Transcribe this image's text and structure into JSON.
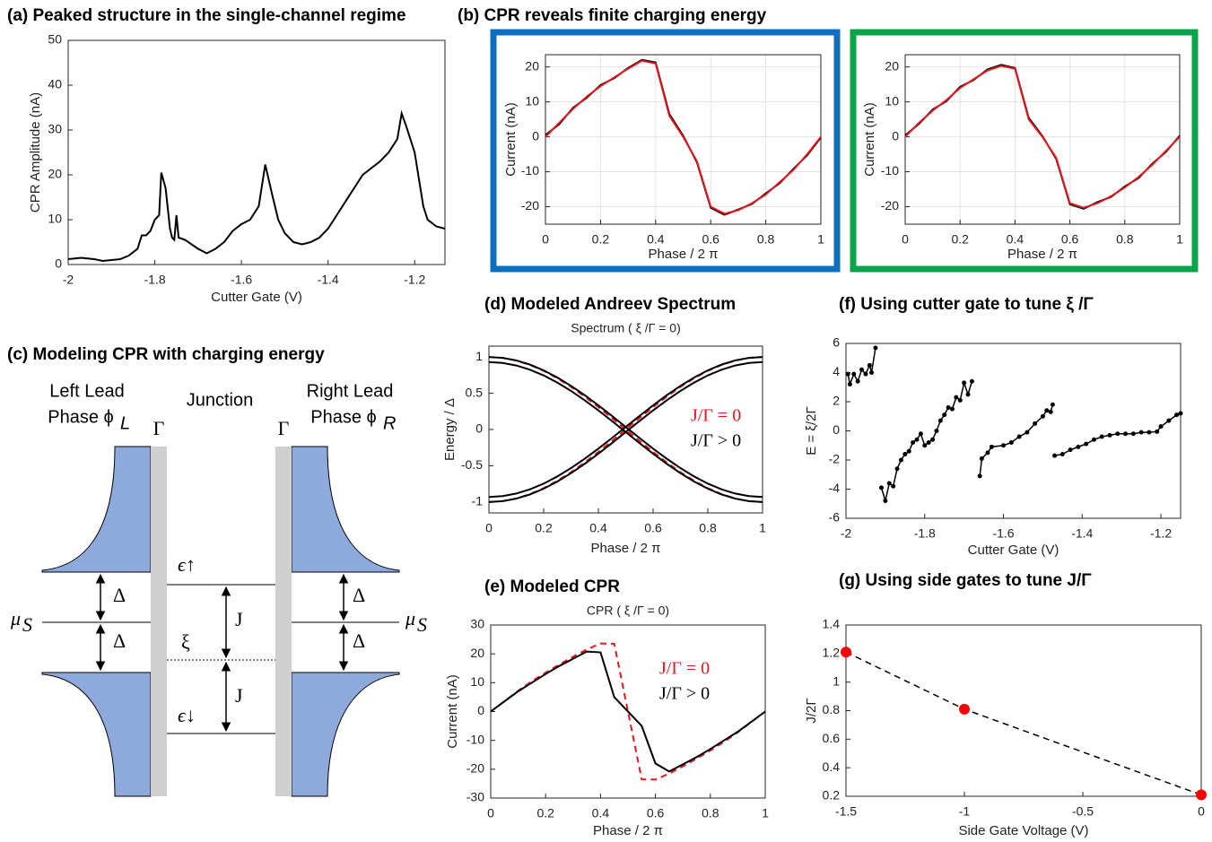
{
  "chart_data": [
    {
      "type": "line",
      "title": "(a) Peaked structure in the single-channel regime",
      "xlabel": "Cutter Gate (V)",
      "ylabel": "CPR Amplitude (nA)",
      "x": [
        -2,
        -1.97,
        -1.94,
        -1.92,
        -1.9,
        -1.88,
        -1.86,
        -1.84,
        -1.83,
        -1.82,
        -1.81,
        -1.8,
        -1.79,
        -1.785,
        -1.775,
        -1.765,
        -1.76,
        -1.755,
        -1.75,
        -1.745,
        -1.73,
        -1.7,
        -1.68,
        -1.66,
        -1.64,
        -1.62,
        -1.6,
        -1.58,
        -1.56,
        -1.545,
        -1.53,
        -1.515,
        -1.5,
        -1.48,
        -1.46,
        -1.44,
        -1.42,
        -1.4,
        -1.38,
        -1.36,
        -1.34,
        -1.32,
        -1.3,
        -1.28,
        -1.26,
        -1.24,
        -1.23,
        -1.22,
        -1.2,
        -1.19,
        -1.18,
        -1.17,
        -1.15,
        -1.13
      ],
      "series": [
        {
          "color": "#000000",
          "values": [
            1.2,
            1.5,
            1.2,
            0.8,
            1,
            1.2,
            2,
            3.5,
            6.5,
            6.5,
            7.5,
            10,
            11,
            20.5,
            17,
            8,
            6,
            5.5,
            11,
            6,
            5.5,
            3.5,
            2.5,
            3.5,
            5,
            7.5,
            9,
            10,
            13,
            22.3,
            16,
            10,
            7,
            5,
            4.5,
            5,
            6,
            8,
            11,
            14,
            17,
            20,
            21.5,
            23,
            25,
            28,
            33.7,
            31,
            25,
            19,
            13,
            10,
            8.5,
            8
          ]
        }
      ],
      "xlim": [
        -2,
        -1.13
      ],
      "xticks": [
        -2,
        -1.8,
        -1.6,
        -1.4,
        -1.2
      ],
      "ylim": [
        0,
        50
      ],
      "yticks": [
        0,
        10,
        20,
        30,
        40,
        50
      ],
      "grid": false
    },
    {
      "type": "line",
      "title": "(b) CPR reveals  finite charging energy",
      "xlabel": "Phase / 2 π",
      "ylabel": "Current (nA)",
      "frame_color": "#0e6fbf",
      "x": [
        0,
        0.05,
        0.1,
        0.15,
        0.2,
        0.25,
        0.3,
        0.35,
        0.4,
        0.45,
        0.5,
        0.55,
        0.6,
        0.65,
        0.7,
        0.75,
        0.8,
        0.85,
        0.9,
        0.95,
        1
      ],
      "series": [
        {
          "color": "#000000",
          "values": [
            0.5,
            3.6,
            8.3,
            11.2,
            14.8,
            16.8,
            19.7,
            22,
            21.3,
            6.5,
            0.3,
            -7.3,
            -20.3,
            -22.3,
            -20.8,
            -19.2,
            -16.2,
            -13.3,
            -9.2,
            -5.3,
            -0.2
          ]
        },
        {
          "color": "#e8141b",
          "values": [
            0,
            4,
            8,
            11.5,
            14.5,
            17,
            19.5,
            21.8,
            21,
            6,
            0,
            -7,
            -20,
            -22,
            -21,
            -19,
            -16.5,
            -13,
            -9.5,
            -5,
            0
          ]
        }
      ],
      "xlim": [
        0,
        1
      ],
      "xticks": [
        0,
        0.2,
        0.4,
        0.6,
        0.8,
        1
      ],
      "ylim": [
        -25,
        23.5
      ],
      "yticks": [
        -20,
        -10,
        0,
        10,
        20
      ],
      "grid": true
    },
    {
      "type": "line",
      "xlabel": "Phase / 2 π",
      "ylabel": "Current (nA)",
      "frame_color": "#0aa54b",
      "x": [
        0,
        0.05,
        0.1,
        0.15,
        0.2,
        0.25,
        0.3,
        0.35,
        0.4,
        0.45,
        0.5,
        0.55,
        0.6,
        0.65,
        0.7,
        0.75,
        0.8,
        0.85,
        0.9,
        0.95,
        1
      ],
      "series": [
        {
          "color": "#000000",
          "values": [
            0.4,
            3.7,
            7.8,
            10.2,
            14.3,
            16.3,
            19.3,
            20.6,
            19.7,
            5.4,
            0.2,
            -6.3,
            -19.3,
            -20.6,
            -18.7,
            -17.2,
            -14.2,
            -11.8,
            -7.7,
            -4.3,
            0.3
          ]
        },
        {
          "color": "#e8141b",
          "values": [
            0,
            4,
            7.5,
            10.5,
            14,
            16.5,
            19,
            20.3,
            19.5,
            5,
            0,
            -6,
            -19,
            -20.3,
            -19,
            -17,
            -14.5,
            -11.5,
            -8,
            -4,
            0
          ]
        }
      ],
      "xlim": [
        0,
        1
      ],
      "xticks": [
        0,
        0.2,
        0.4,
        0.6,
        0.8,
        1
      ],
      "ylim": [
        -25,
        23.5
      ],
      "yticks": [
        -20,
        -10,
        0,
        10,
        20
      ],
      "grid": true
    },
    {
      "type": "line",
      "title": "(d) Modeled Andreev Spectrum",
      "subtitle": "Spectrum ( ξ /Γ = 0)",
      "xlabel": "Phase / 2 π",
      "ylabel": "Energy / Δ",
      "x": [
        0,
        0.05,
        0.1,
        0.15,
        0.2,
        0.25,
        0.3,
        0.35,
        0.4,
        0.45,
        0.5,
        0.55,
        0.6,
        0.65,
        0.7,
        0.75,
        0.8,
        0.85,
        0.9,
        0.95,
        1
      ],
      "series": [
        {
          "color": "#e8141b",
          "linestyle": "dashed",
          "values": [
            1,
            0.988,
            0.951,
            0.891,
            0.809,
            0.707,
            0.588,
            0.454,
            0.309,
            0.156,
            0,
            -0.156,
            -0.309,
            -0.454,
            -0.588,
            -0.707,
            -0.809,
            -0.891,
            -0.951,
            -0.988,
            -1
          ]
        },
        {
          "color": "#e8141b",
          "linestyle": "dashed",
          "values": [
            -1,
            -0.988,
            -0.951,
            -0.891,
            -0.809,
            -0.707,
            -0.588,
            -0.454,
            -0.309,
            -0.156,
            0,
            0.156,
            0.309,
            0.454,
            0.588,
            0.707,
            0.809,
            0.891,
            0.951,
            0.988,
            1
          ]
        },
        {
          "color": "#000000",
          "values": [
            1,
            0.988,
            0.953,
            0.895,
            0.816,
            0.717,
            0.602,
            0.473,
            0.333,
            0.186,
            0.035,
            -0.116,
            -0.263,
            -0.403,
            -0.532,
            -0.647,
            -0.746,
            -0.825,
            -0.883,
            -0.918,
            -0.93
          ]
        },
        {
          "color": "#000000",
          "values": [
            0.93,
            0.918,
            0.883,
            0.825,
            0.746,
            0.647,
            0.532,
            0.403,
            0.263,
            0.116,
            -0.035,
            -0.186,
            -0.333,
            -0.473,
            -0.602,
            -0.717,
            -0.816,
            -0.895,
            -0.953,
            -0.988,
            -1
          ]
        },
        {
          "color": "#000000",
          "values": [
            -1,
            -0.988,
            -0.953,
            -0.895,
            -0.816,
            -0.717,
            -0.602,
            -0.473,
            -0.333,
            -0.186,
            -0.035,
            0.116,
            0.263,
            0.403,
            0.532,
            0.647,
            0.746,
            0.825,
            0.883,
            0.918,
            0.93
          ]
        },
        {
          "color": "#000000",
          "values": [
            -0.93,
            -0.918,
            -0.883,
            -0.825,
            -0.746,
            -0.647,
            -0.532,
            -0.403,
            -0.263,
            -0.116,
            0.035,
            0.186,
            0.333,
            0.473,
            0.602,
            0.717,
            0.816,
            0.895,
            0.953,
            0.988,
            1
          ]
        }
      ],
      "annotations": [
        {
          "text": "J/Γ = 0",
          "color": "#e8141b"
        },
        {
          "text": "J/Γ > 0",
          "color": "#000000"
        }
      ],
      "xlim": [
        0,
        1
      ],
      "xticks": [
        0,
        0.2,
        0.4,
        0.6,
        0.8,
        1
      ],
      "ylim": [
        -1.15,
        1.15
      ],
      "yticks": [
        -1,
        -0.5,
        0,
        0.5,
        1
      ],
      "grid": false
    },
    {
      "type": "line",
      "title": "(e) Modeled CPR",
      "subtitle": "CPR ( ξ /Γ = 0)",
      "xlabel": "Phase / 2 π",
      "ylabel": "Current (nA)",
      "x": [
        0,
        0.05,
        0.1,
        0.15,
        0.2,
        0.25,
        0.3,
        0.35,
        0.4,
        0.45,
        0.5,
        0.55,
        0.6,
        0.65,
        0.7,
        0.75,
        0.8,
        0.85,
        0.9,
        0.95,
        1
      ],
      "series": [
        {
          "color": "#e8141b",
          "linestyle": "dashed",
          "values": [
            0,
            3.6,
            7.2,
            10.5,
            13.5,
            16.3,
            19,
            21.5,
            23.6,
            23.5,
            0,
            -23.5,
            -23.6,
            -21.5,
            -19,
            -16.3,
            -13.5,
            -10.5,
            -7.2,
            -3.6,
            0
          ]
        },
        {
          "color": "#000000",
          "values": [
            0,
            3.5,
            7,
            10,
            13,
            15.8,
            18.3,
            20.8,
            20.5,
            5,
            0,
            -5,
            -18,
            -20.8,
            -18.3,
            -15.8,
            -13,
            -10,
            -7,
            -3.5,
            0
          ]
        }
      ],
      "annotations": [
        {
          "text": "J/Γ  = 0",
          "color": "#e8141b"
        },
        {
          "text": "J/Γ  > 0",
          "color": "#000000"
        }
      ],
      "xlim": [
        0,
        1
      ],
      "xticks": [
        0,
        0.2,
        0.4,
        0.6,
        0.8,
        1
      ],
      "ylim": [
        -30,
        30
      ],
      "yticks": [
        -30,
        -20,
        -10,
        0,
        10,
        20,
        30
      ],
      "grid": false
    },
    {
      "type": "line",
      "title": "(f) Using cutter gate to tune  ξ /Γ",
      "xlabel": "Cutter Gate (V)",
      "ylabel": "E = ξ/2Γ",
      "marker": true,
      "x": [
        -1.995,
        -1.99,
        -1.98,
        -1.97,
        -1.96,
        -1.95,
        -1.94,
        -1.935,
        -1.925,
        null,
        -1.91,
        -1.9,
        -1.89,
        -1.88,
        -1.87,
        -1.86,
        -1.85,
        -1.84,
        -1.83,
        -1.82,
        -1.81,
        -1.8,
        -1.79,
        -1.78,
        -1.77,
        -1.76,
        -1.75,
        -1.74,
        -1.73,
        -1.72,
        -1.71,
        -1.7,
        -1.69,
        -1.68,
        null,
        -1.66,
        -1.655,
        -1.64,
        -1.63,
        -1.6,
        -1.58,
        -1.56,
        -1.54,
        -1.52,
        -1.5,
        -1.49,
        -1.48,
        -1.475,
        null,
        -1.47,
        -1.45,
        -1.43,
        -1.41,
        -1.39,
        -1.37,
        -1.35,
        -1.33,
        -1.31,
        -1.29,
        -1.27,
        -1.25,
        -1.23,
        -1.21,
        -1.2,
        -1.18,
        -1.16,
        -1.15
      ],
      "series": [
        {
          "color": "#000000",
          "values": [
            3.9,
            3.2,
            3.9,
            3.4,
            4.2,
            3.9,
            4.5,
            4,
            5.7,
            null,
            -3.9,
            -4.8,
            -3.6,
            -3.8,
            -2.6,
            -2,
            -1.6,
            -1.4,
            -0.8,
            -0.6,
            -0.2,
            -1,
            -0.8,
            -0.6,
            0,
            0.7,
            1.1,
            1.6,
            1.5,
            2.3,
            2.1,
            3.3,
            2.5,
            3.4,
            null,
            -3.1,
            -1.9,
            -1.5,
            -1.1,
            -1,
            -0.8,
            -0.4,
            -0.1,
            0.5,
            1,
            1.4,
            1.3,
            1.8,
            null,
            -1.7,
            -1.6,
            -1.3,
            -1.1,
            -0.9,
            -0.6,
            -0.4,
            -0.3,
            -0.2,
            -0.2,
            -0.2,
            -0.1,
            -0.1,
            -0.05,
            0.3,
            0.7,
            1.1,
            1.2
          ]
        }
      ],
      "xlim": [
        -2,
        -1.15
      ],
      "xticks": [
        -2,
        -1.8,
        -1.6,
        -1.4,
        -1.2
      ],
      "ylim": [
        -6,
        6
      ],
      "yticks": [
        -6,
        -4,
        -2,
        0,
        2,
        4,
        6
      ],
      "grid": false
    },
    {
      "type": "line",
      "title": "(g) Using side gates to tune  J/Γ",
      "xlabel": "Side Gate Voltage (V)",
      "ylabel": "J/2Γ",
      "marker": true,
      "x": [
        -1.5,
        -1,
        0
      ],
      "series": [
        {
          "color": "#000000",
          "marker_color": "#ff0000",
          "linestyle": "dashed",
          "values": [
            1.21,
            0.81,
            0.21
          ]
        }
      ],
      "xlim": [
        -1.5,
        0
      ],
      "xticks": [
        -1.5,
        -1,
        -0.5,
        0
      ],
      "ylim": [
        0.2,
        1.4
      ],
      "yticks": [
        0.2,
        0.4,
        0.6,
        0.8,
        1,
        1.2,
        1.4
      ],
      "grid": false
    }
  ],
  "diagram": {
    "title": "(c) Modeling CPR with charging energy",
    "labels": {
      "left_lead": "Left Lead",
      "phase_left": "Phase ϕ",
      "sub_left": "L",
      "junction": "Junction",
      "right_lead": "Right Lead",
      "phase_right": "Phase ϕ",
      "sub_right": "R",
      "gamma": [
        "Γ",
        "Γ"
      ],
      "delta": [
        "Δ",
        "Δ",
        "Δ",
        "Δ"
      ],
      "mu": [
        "μ",
        "μ"
      ],
      "mu_sub": [
        "S",
        "S"
      ],
      "eps_up": "ϵ↑",
      "eps_down": "ϵ↓",
      "xi": "ξ",
      "j": [
        "J",
        "J"
      ]
    }
  }
}
